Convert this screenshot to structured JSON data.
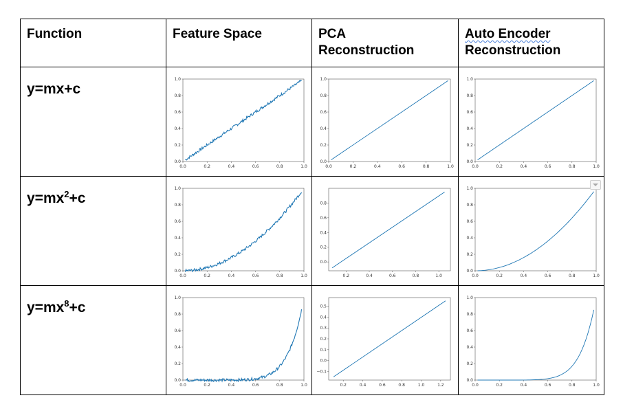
{
  "table": {
    "headers": {
      "function": "Function",
      "feature_space": "Feature Space",
      "pca_line1": "PCA",
      "pca_line2": "Reconstruction",
      "ae_line1": "Auto Encoder",
      "ae_line2": "Reconstruction"
    },
    "rows": [
      {
        "base": "y=mx",
        "sup": "",
        "tail": "+c"
      },
      {
        "base": "y=mx",
        "sup": "2",
        "tail": "+c"
      },
      {
        "base": "y=mx",
        "sup": "8",
        "tail": "+c"
      }
    ]
  },
  "chart_data": [
    {
      "type": "line",
      "row": 1,
      "column": "Feature Space",
      "function": "linear",
      "power": 1,
      "noise": true,
      "xlim": [
        0,
        1
      ],
      "ylim": [
        0,
        1
      ],
      "xticks": [
        "0.0",
        "0.2",
        "0.4",
        "0.6",
        "0.8",
        "1.0"
      ],
      "yticks": [
        "0.0",
        "0.2",
        "0.4",
        "0.6",
        "0.8",
        "1.0"
      ],
      "color": "#1f77b4"
    },
    {
      "type": "line",
      "row": 1,
      "column": "PCA Reconstruction",
      "function": "linear",
      "x": [
        0.02,
        0.98
      ],
      "y": [
        0.02,
        0.98
      ],
      "xlim": [
        0,
        1
      ],
      "ylim": [
        0,
        1
      ],
      "xticks": [
        "0.0",
        "0.2",
        "0.4",
        "0.6",
        "0.8",
        "1.0"
      ],
      "yticks": [
        "0.0",
        "0.2",
        "0.4",
        "0.6",
        "0.8",
        "1.0"
      ],
      "color": "#1f77b4"
    },
    {
      "type": "line",
      "row": 1,
      "column": "Auto Encoder Reconstruction",
      "function": "linear",
      "power": 1,
      "xlim": [
        0,
        1
      ],
      "ylim": [
        0,
        1
      ],
      "xticks": [
        "0.0",
        "0.2",
        "0.4",
        "0.6",
        "0.8",
        "1.0"
      ],
      "yticks": [
        "0.0",
        "0.2",
        "0.4",
        "0.6",
        "0.8",
        "1.0"
      ],
      "color": "#1f77b4"
    },
    {
      "type": "line",
      "row": 2,
      "column": "Feature Space",
      "function": "quadratic",
      "power": 2,
      "noise": true,
      "xlim": [
        0,
        1
      ],
      "ylim": [
        0,
        1
      ],
      "xticks": [
        "0.0",
        "0.2",
        "0.4",
        "0.6",
        "0.8",
        "1.0"
      ],
      "yticks": [
        "0.0",
        "0.2",
        "0.4",
        "0.6",
        "0.8",
        "1.0"
      ],
      "color": "#1f77b4"
    },
    {
      "type": "line",
      "row": 2,
      "column": "PCA Reconstruction",
      "function": "linear",
      "x": [
        0.08,
        1.05
      ],
      "y": [
        -0.08,
        0.95
      ],
      "xlim": [
        0.05,
        1.1
      ],
      "ylim": [
        -0.12,
        1.0
      ],
      "xticks": [
        "0.2",
        "0.4",
        "0.6",
        "0.8",
        "1.0"
      ],
      "yticks": [
        "0.0",
        "0.2",
        "0.4",
        "0.6",
        "0.8"
      ],
      "color": "#1f77b4"
    },
    {
      "type": "line",
      "row": 2,
      "column": "Auto Encoder Reconstruction",
      "function": "quadratic",
      "power": 2,
      "xlim": [
        0,
        1
      ],
      "ylim": [
        0,
        1
      ],
      "xticks": [
        "0.0",
        "0.2",
        "0.4",
        "0.6",
        "0.8",
        "1.0"
      ],
      "yticks": [
        "0.0",
        "0.2",
        "0.4",
        "0.6",
        "0.8",
        "1.0"
      ],
      "color": "#1f77b4"
    },
    {
      "type": "line",
      "row": 3,
      "column": "Feature Space",
      "function": "power 8",
      "power": 8,
      "noise": true,
      "xlim": [
        0,
        1
      ],
      "ylim": [
        0,
        1
      ],
      "xticks": [
        "0.0",
        "0.2",
        "0.4",
        "0.6",
        "0.8",
        "1.0"
      ],
      "yticks": [
        "0.0",
        "0.2",
        "0.4",
        "0.6",
        "0.8",
        "1.0"
      ],
      "color": "#1f77b4"
    },
    {
      "type": "line",
      "row": 3,
      "column": "PCA Reconstruction",
      "function": "linear",
      "x": [
        0.1,
        1.25
      ],
      "y": [
        -0.15,
        0.55
      ],
      "xlim": [
        0.05,
        1.3
      ],
      "ylim": [
        -0.18,
        0.58
      ],
      "xticks": [
        "0.2",
        "0.4",
        "0.6",
        "0.8",
        "1.0",
        "1.2"
      ],
      "yticks": [
        "−0.1",
        "0.0",
        "0.1",
        "0.2",
        "0.3",
        "0.4",
        "0.5"
      ],
      "color": "#1f77b4"
    },
    {
      "type": "line",
      "row": 3,
      "column": "Auto Encoder Reconstruction",
      "function": "power 8",
      "power": 8,
      "xlim": [
        0,
        1
      ],
      "ylim": [
        0,
        1
      ],
      "xticks": [
        "0.0",
        "0.2",
        "0.4",
        "0.6",
        "0.8",
        "1.0"
      ],
      "yticks": [
        "0.0",
        "0.2",
        "0.4",
        "0.6",
        "0.8",
        "1.0"
      ],
      "color": "#1f77b4"
    }
  ]
}
